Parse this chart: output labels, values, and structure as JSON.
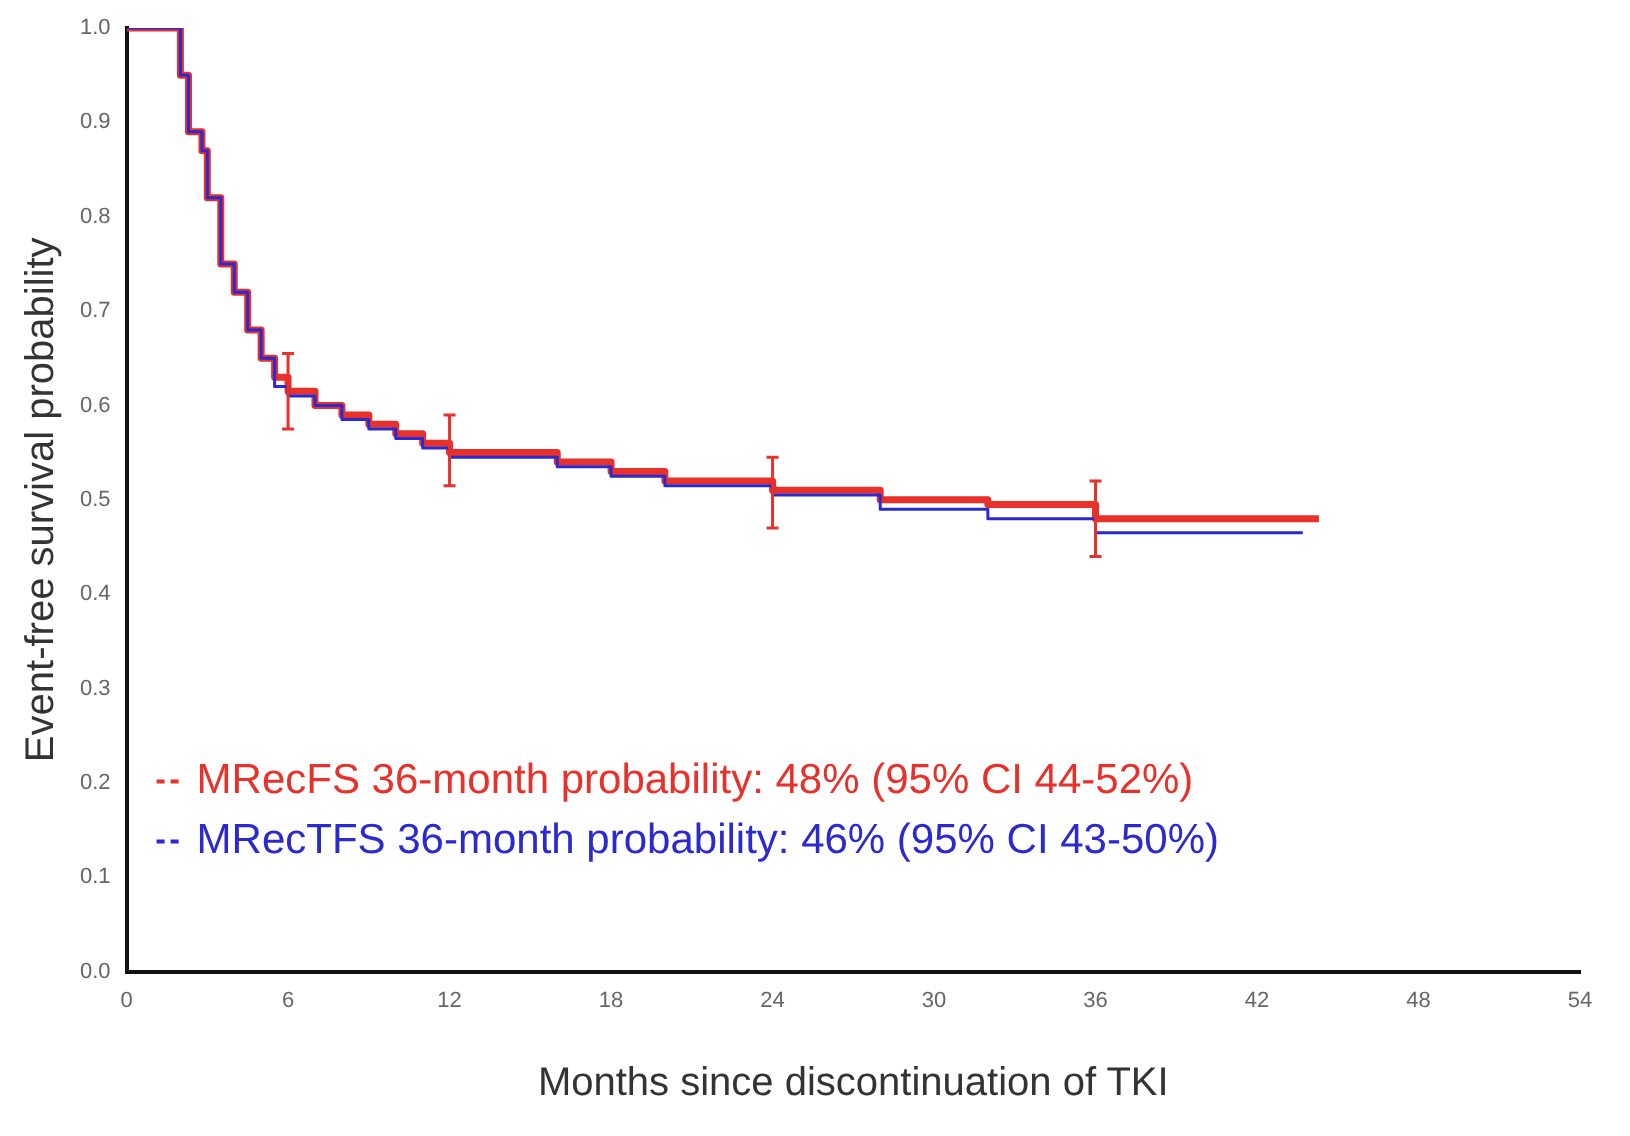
{
  "chart_data": {
    "type": "step",
    "xlabel": "Months since discontinuation of TKI",
    "ylabel": "Event-free survival probability",
    "xlim": [
      0,
      54
    ],
    "xticks": [
      0,
      6,
      12,
      18,
      24,
      30,
      36,
      42,
      48,
      54
    ],
    "ylim": [
      0,
      1
    ],
    "yticks": [
      {
        "value": 0,
        "label": "0.0"
      },
      {
        "value": 0.1,
        "label": "0.1"
      },
      {
        "value": 0.2,
        "label": "0.2"
      },
      {
        "value": 0.3,
        "label": "0.3"
      },
      {
        "value": 0.4,
        "label": "0.4"
      },
      {
        "value": 0.5,
        "label": "0.5"
      },
      {
        "value": 0.6,
        "label": "0.6"
      },
      {
        "value": 0.7,
        "label": "0.7"
      },
      {
        "value": 0.8,
        "label": "0.8"
      },
      {
        "value": 0.9,
        "label": "0.9"
      },
      {
        "value": 1,
        "label": "1.0"
      }
    ],
    "grid": false,
    "legend": "bottom left",
    "line_style": "solid",
    "series": [
      {
        "name": "MRecFS 36-month probability: 48% (95% CI 44-52%)",
        "color": "#e8312a",
        "x": [
          0,
          1.5,
          2.0,
          2.3,
          2.8,
          3.0,
          3.5,
          4.0,
          4.5,
          5.0,
          5.5,
          6,
          7,
          8,
          9,
          10,
          11,
          12,
          14,
          16,
          18,
          20,
          24,
          28,
          32,
          36,
          42,
          44.3
        ],
        "values": [
          1.0,
          1.0,
          0.95,
          0.89,
          0.87,
          0.82,
          0.75,
          0.72,
          0.68,
          0.65,
          0.63,
          0.615,
          0.6,
          0.59,
          0.58,
          0.57,
          0.56,
          0.55,
          0.55,
          0.54,
          0.53,
          0.52,
          0.51,
          0.5,
          0.495,
          0.48,
          0.48,
          0.48
        ],
        "errors": [
          null,
          null,
          null,
          null,
          null,
          null,
          null,
          null,
          null,
          null,
          null,
          [
            0.575,
            0.655
          ],
          null,
          null,
          null,
          null,
          null,
          [
            0.515,
            0.59
          ],
          null,
          null,
          null,
          null,
          [
            0.47,
            0.545
          ],
          null,
          null,
          [
            0.44,
            0.52
          ],
          null,
          null
        ]
      },
      {
        "name": "MRecTFS 36-month probability: 46% (95% CI 43-50%)",
        "color": "#2a2ad0",
        "x": [
          0,
          1.5,
          2.0,
          2.3,
          2.8,
          3.0,
          3.5,
          4.0,
          4.5,
          5.0,
          5.5,
          6,
          7,
          8,
          9,
          10,
          11,
          12,
          14,
          16,
          18,
          20,
          24,
          28,
          32,
          36,
          42,
          43.7
        ],
        "values": [
          1.0,
          1.0,
          0.95,
          0.89,
          0.87,
          0.82,
          0.75,
          0.72,
          0.68,
          0.65,
          0.62,
          0.61,
          0.6,
          0.585,
          0.575,
          0.565,
          0.555,
          0.545,
          0.545,
          0.535,
          0.525,
          0.515,
          0.505,
          0.49,
          0.48,
          0.465,
          0.465,
          0.465
        ]
      }
    ]
  }
}
